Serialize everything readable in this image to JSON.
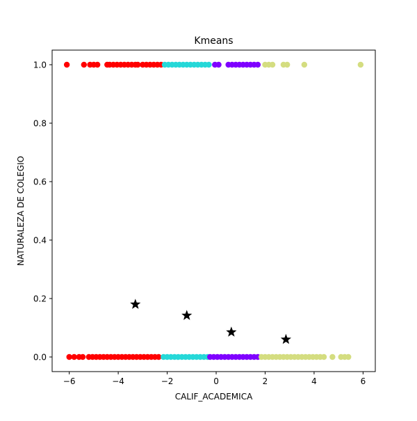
{
  "chart_data": {
    "type": "scatter",
    "title": "Kmeans",
    "xlabel": "CALIF_ACADEMICA",
    "ylabel": "NATURALEZA DE COLEGIO",
    "xlim": [
      -6.7,
      6.5
    ],
    "ylim": [
      -0.05,
      1.05
    ],
    "x_ticks": [
      -6,
      -4,
      -2,
      0,
      2,
      4,
      6
    ],
    "x_tick_labels": [
      "−6",
      "−4",
      "−2",
      "0",
      "2",
      "4",
      "6"
    ],
    "y_ticks": [
      0.0,
      0.2,
      0.4,
      0.6,
      0.8,
      1.0
    ],
    "y_tick_labels": [
      "0.0",
      "0.2",
      "0.4",
      "0.6",
      "0.8",
      "1.0"
    ],
    "grid": false,
    "legend": "none",
    "series": [
      {
        "color": "#ff0000",
        "marker": "circle",
        "points": [
          [
            -6.1,
            1
          ],
          [
            -5.4,
            1
          ],
          [
            -5.15,
            1
          ],
          [
            -5.0,
            1
          ],
          [
            -4.85,
            1
          ],
          [
            -4.45,
            1
          ],
          [
            -4.35,
            1
          ],
          [
            -4.2,
            1
          ],
          [
            -4.05,
            1
          ],
          [
            -3.9,
            1
          ],
          [
            -3.75,
            1
          ],
          [
            -3.6,
            1
          ],
          [
            -3.45,
            1
          ],
          [
            -3.3,
            1
          ],
          [
            -3.2,
            1
          ],
          [
            -3.0,
            1
          ],
          [
            -2.85,
            1
          ],
          [
            -2.7,
            1
          ],
          [
            -2.55,
            1
          ],
          [
            -2.4,
            1
          ],
          [
            -2.25,
            1
          ],
          [
            -6.0,
            0
          ],
          [
            -5.8,
            0
          ],
          [
            -5.6,
            0
          ],
          [
            -5.45,
            0
          ],
          [
            -5.2,
            0
          ],
          [
            -5.05,
            0
          ],
          [
            -4.9,
            0
          ],
          [
            -4.75,
            0
          ],
          [
            -4.6,
            0
          ],
          [
            -4.45,
            0
          ],
          [
            -4.3,
            0
          ],
          [
            -4.15,
            0
          ],
          [
            -4.0,
            0
          ],
          [
            -3.85,
            0
          ],
          [
            -3.7,
            0
          ],
          [
            -3.55,
            0
          ],
          [
            -3.4,
            0
          ],
          [
            -3.25,
            0
          ],
          [
            -3.1,
            0
          ],
          [
            -2.95,
            0
          ],
          [
            -2.8,
            0
          ],
          [
            -2.65,
            0
          ],
          [
            -2.5,
            0
          ],
          [
            -2.35,
            0
          ]
        ]
      },
      {
        "color": "#25d8d8",
        "marker": "circle",
        "points": [
          [
            -2.1,
            1
          ],
          [
            -1.95,
            1
          ],
          [
            -1.8,
            1
          ],
          [
            -1.65,
            1
          ],
          [
            -1.5,
            1
          ],
          [
            -1.35,
            1
          ],
          [
            -1.2,
            1
          ],
          [
            -1.05,
            1
          ],
          [
            -0.9,
            1
          ],
          [
            -0.75,
            1
          ],
          [
            -0.6,
            1
          ],
          [
            -0.45,
            1
          ],
          [
            -0.3,
            1
          ],
          [
            -2.15,
            0
          ],
          [
            -2.0,
            0
          ],
          [
            -1.85,
            0
          ],
          [
            -1.7,
            0
          ],
          [
            -1.55,
            0
          ],
          [
            -1.4,
            0
          ],
          [
            -1.25,
            0
          ],
          [
            -1.1,
            0
          ],
          [
            -0.95,
            0
          ],
          [
            -0.8,
            0
          ],
          [
            -0.65,
            0
          ],
          [
            -0.5,
            0
          ],
          [
            -0.35,
            0
          ]
        ]
      },
      {
        "color": "#7f00ff",
        "marker": "circle",
        "points": [
          [
            -0.05,
            1
          ],
          [
            0.1,
            1
          ],
          [
            0.5,
            1
          ],
          [
            0.65,
            1
          ],
          [
            0.8,
            1
          ],
          [
            0.95,
            1
          ],
          [
            1.1,
            1
          ],
          [
            1.25,
            1
          ],
          [
            1.4,
            1
          ],
          [
            1.55,
            1
          ],
          [
            1.7,
            1
          ],
          [
            -0.25,
            0
          ],
          [
            -0.1,
            0
          ],
          [
            0.05,
            0
          ],
          [
            0.2,
            0
          ],
          [
            0.35,
            0
          ],
          [
            0.5,
            0
          ],
          [
            0.65,
            0
          ],
          [
            0.8,
            0
          ],
          [
            0.95,
            0
          ],
          [
            1.1,
            0
          ],
          [
            1.25,
            0
          ],
          [
            1.4,
            0
          ],
          [
            1.55,
            0
          ],
          [
            1.7,
            0
          ]
        ]
      },
      {
        "color": "#d4dd80",
        "marker": "circle",
        "points": [
          [
            2.0,
            1
          ],
          [
            2.15,
            1
          ],
          [
            2.3,
            1
          ],
          [
            2.75,
            1
          ],
          [
            2.9,
            1
          ],
          [
            3.6,
            1
          ],
          [
            5.9,
            1
          ],
          [
            1.85,
            0
          ],
          [
            2.0,
            0
          ],
          [
            2.15,
            0
          ],
          [
            2.3,
            0
          ],
          [
            2.45,
            0
          ],
          [
            2.6,
            0
          ],
          [
            2.75,
            0
          ],
          [
            2.9,
            0
          ],
          [
            3.05,
            0
          ],
          [
            3.2,
            0
          ],
          [
            3.35,
            0
          ],
          [
            3.5,
            0
          ],
          [
            3.65,
            0
          ],
          [
            3.8,
            0
          ],
          [
            3.95,
            0
          ],
          [
            4.1,
            0
          ],
          [
            4.25,
            0
          ],
          [
            4.4,
            0
          ],
          [
            4.75,
            0
          ],
          [
            5.1,
            0
          ],
          [
            5.25,
            0
          ],
          [
            5.4,
            0
          ]
        ]
      }
    ],
    "centroids": {
      "color": "#000000",
      "marker": "star",
      "points": [
        [
          -3.3,
          0.18
        ],
        [
          -1.2,
          0.142
        ],
        [
          0.62,
          0.085
        ],
        [
          2.85,
          0.06
        ]
      ]
    }
  }
}
